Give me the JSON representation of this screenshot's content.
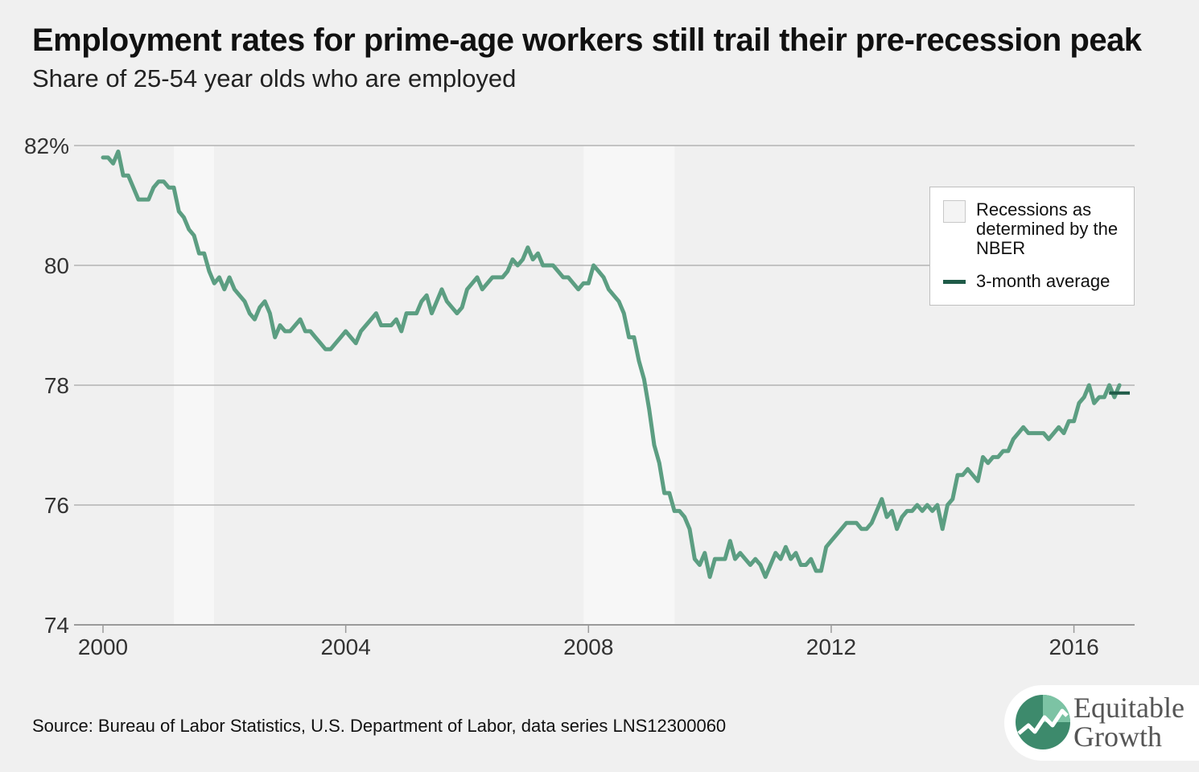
{
  "header": {
    "title": "Employment rates for prime-age workers still trail their pre-recession peak",
    "subtitle": "Share of 25-54 year olds who are employed"
  },
  "legend": {
    "recession_label": "Recessions as determined by the NBER",
    "average_label": "3-month average"
  },
  "footer": {
    "source": "Source: Bureau of Labor Statistics, U.S. Department of Labor, data series LNS12300060"
  },
  "logo": {
    "line1": "Equitable",
    "line2": "Growth",
    "icon": "equitable-growth-logo-icon"
  },
  "colors": {
    "series": "#5c9e82",
    "average": "#1f5b48",
    "recession": "#f7f7f7",
    "grid": "#b3b3b3",
    "background": "#f0f0f0"
  },
  "chart_data": {
    "type": "line",
    "title": "Employment rates for prime-age workers still trail their pre-recession peak",
    "subtitle": "Share of 25-54 year olds who are employed",
    "xlabel": "",
    "ylabel": "",
    "xlim": [
      2000,
      2017
    ],
    "ylim": [
      74,
      82
    ],
    "x_ticks": [
      2000,
      2004,
      2008,
      2012,
      2016
    ],
    "x_tick_labels": [
      "2000",
      "2004",
      "2008",
      "2012",
      "2016"
    ],
    "y_ticks": [
      74,
      76,
      78,
      80,
      82
    ],
    "y_tick_labels": [
      "74",
      "76",
      "78",
      "80",
      "82%"
    ],
    "grid": true,
    "legend_position": "top-right",
    "recessions": [
      {
        "start": 2001.17,
        "end": 2001.83
      },
      {
        "start": 2007.92,
        "end": 2009.42
      }
    ],
    "series": [
      {
        "name": "",
        "x_start": 2000.0,
        "x_step": 0.0833333,
        "values": [
          81.8,
          81.8,
          81.7,
          81.9,
          81.5,
          81.5,
          81.3,
          81.1,
          81.1,
          81.1,
          81.3,
          81.4,
          81.4,
          81.3,
          81.3,
          80.9,
          80.8,
          80.6,
          80.5,
          80.2,
          80.2,
          79.9,
          79.7,
          79.8,
          79.6,
          79.8,
          79.6,
          79.5,
          79.4,
          79.2,
          79.1,
          79.3,
          79.4,
          79.2,
          78.8,
          79.0,
          78.9,
          78.9,
          79.0,
          79.1,
          78.9,
          78.9,
          78.8,
          78.7,
          78.6,
          78.6,
          78.7,
          78.8,
          78.9,
          78.8,
          78.7,
          78.9,
          79.0,
          79.1,
          79.2,
          79.0,
          79.0,
          79.0,
          79.1,
          78.9,
          79.2,
          79.2,
          79.2,
          79.4,
          79.5,
          79.2,
          79.4,
          79.6,
          79.4,
          79.3,
          79.2,
          79.3,
          79.6,
          79.7,
          79.8,
          79.6,
          79.7,
          79.8,
          79.8,
          79.8,
          79.9,
          80.1,
          80.0,
          80.1,
          80.3,
          80.1,
          80.2,
          80.0,
          80.0,
          80.0,
          79.9,
          79.8,
          79.8,
          79.7,
          79.6,
          79.7,
          79.7,
          80.0,
          79.9,
          79.8,
          79.6,
          79.5,
          79.4,
          79.2,
          78.8,
          78.8,
          78.4,
          78.1,
          77.6,
          77.0,
          76.7,
          76.2,
          76.2,
          75.9,
          75.9,
          75.8,
          75.6,
          75.1,
          75.0,
          75.2,
          74.8,
          75.1,
          75.1,
          75.1,
          75.4,
          75.1,
          75.2,
          75.1,
          75.0,
          75.1,
          75.0,
          74.8,
          75.0,
          75.2,
          75.1,
          75.3,
          75.1,
          75.2,
          75.0,
          75.0,
          75.1,
          74.9,
          74.9,
          75.3,
          75.4,
          75.5,
          75.6,
          75.7,
          75.7,
          75.7,
          75.6,
          75.6,
          75.7,
          75.9,
          76.1,
          75.8,
          75.9,
          75.6,
          75.8,
          75.9,
          75.9,
          76.0,
          75.9,
          76.0,
          75.9,
          76.0,
          75.6,
          76.0,
          76.1,
          76.5,
          76.5,
          76.6,
          76.5,
          76.4,
          76.8,
          76.7,
          76.8,
          76.8,
          76.9,
          76.9,
          77.1,
          77.2,
          77.3,
          77.2,
          77.2,
          77.2,
          77.2,
          77.1,
          77.2,
          77.3,
          77.2,
          77.4,
          77.4,
          77.7,
          77.8,
          78.0,
          77.7,
          77.8,
          77.8,
          78.0,
          77.8,
          78.0
        ]
      },
      {
        "name": "3-month average",
        "x": [
          2016.58,
          2016.92
        ],
        "values": [
          77.87,
          77.87
        ]
      }
    ]
  }
}
